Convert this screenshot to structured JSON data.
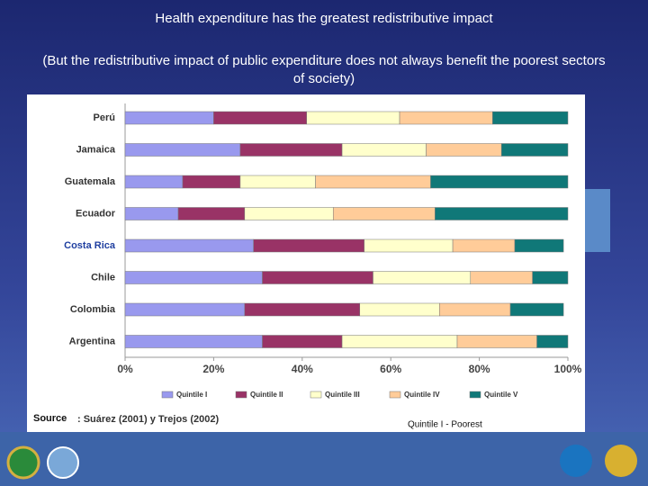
{
  "header": {
    "title": "Health expenditure has the greatest redistributive impact",
    "subtitle": "(But the redistributive impact of public expenditure does not always benefit the poorest sectors of society)"
  },
  "chart_data": {
    "type": "stacked_bar_horizontal",
    "categories": [
      "Perú",
      "Jamaica",
      "Guatemala",
      "Ecuador",
      "Costa Rica",
      "Chile",
      "Colombia",
      "Argentina"
    ],
    "category_label_colors": [
      "#333333",
      "#333333",
      "#333333",
      "#333333",
      "#1f3fa0",
      "#333333",
      "#333333",
      "#333333"
    ],
    "series": [
      {
        "name": "Quintile I",
        "color": "#9999ee",
        "values": [
          20,
          26,
          13,
          12,
          29,
          31,
          27,
          31
        ]
      },
      {
        "name": "Quintile II",
        "color": "#993366",
        "values": [
          21,
          23,
          13,
          15,
          25,
          25,
          26,
          18
        ]
      },
      {
        "name": "Quintile III",
        "color": "#ffffcc",
        "values": [
          21,
          19,
          17,
          20,
          20,
          22,
          18,
          26
        ]
      },
      {
        "name": "Quintile IV",
        "color": "#ffcc99",
        "values": [
          21,
          17,
          26,
          23,
          14,
          14,
          16,
          18
        ]
      },
      {
        "name": "Quintile V",
        "color": "#107878",
        "values": [
          17,
          15,
          31,
          30,
          11,
          8,
          12,
          7
        ]
      }
    ],
    "xlim": [
      0,
      100
    ],
    "xticks": [
      {
        "value": 0,
        "label": "0%"
      },
      {
        "value": 20,
        "label": "20%"
      },
      {
        "value": 40,
        "label": "40%"
      },
      {
        "value": 60,
        "label": "60%"
      },
      {
        "value": 80,
        "label": "80%"
      },
      {
        "value": 100,
        "label": "100%"
      }
    ],
    "grid": false
  },
  "source": {
    "label": "Source",
    "text": ": Suárez (2001) y Trejos (2002)"
  },
  "note": "Quintile I - Poorest"
}
